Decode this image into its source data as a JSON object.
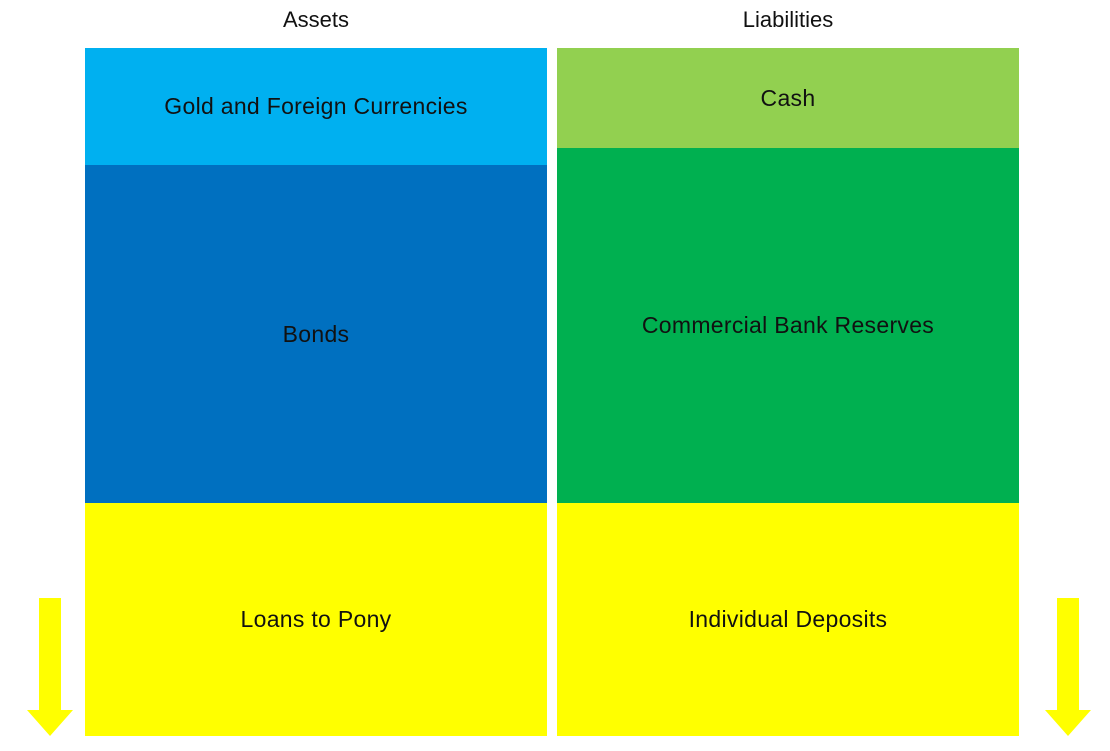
{
  "headings": {
    "assets": "Assets",
    "liabilities": "Liabilities"
  },
  "assets": {
    "gold": {
      "label": "Gold and Foreign Currencies",
      "color": "#00B0F0"
    },
    "bonds": {
      "label": "Bonds",
      "color": "#0070C0"
    },
    "loans": {
      "label": "Loans to Pony",
      "color": "#FFFF00"
    }
  },
  "liabilities": {
    "cash": {
      "label": "Cash",
      "color": "#92D050"
    },
    "reserves": {
      "label": "Commercial Bank Reserves",
      "color": "#00B050"
    },
    "deposits": {
      "label": "Individual Deposits",
      "color": "#FFFF00"
    }
  },
  "arrows": {
    "left": {
      "icon": "down-arrow-icon",
      "color": "#FFFF00"
    },
    "right": {
      "icon": "down-arrow-icon",
      "color": "#FFFF00"
    }
  }
}
